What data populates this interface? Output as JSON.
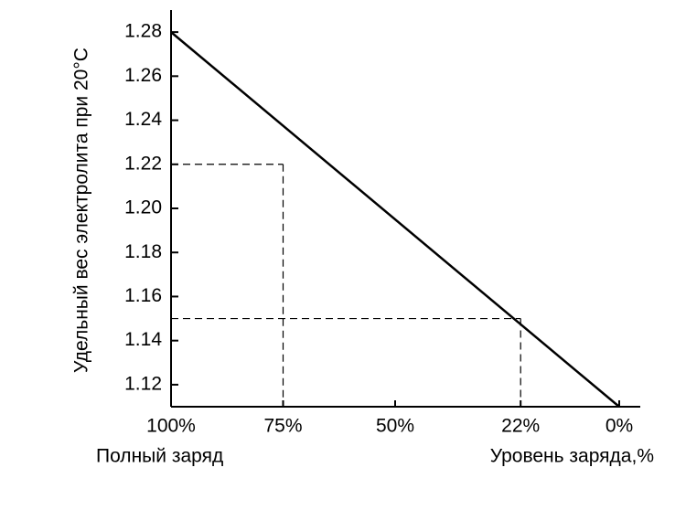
{
  "chart_data": {
    "type": "line",
    "y_label": "Удельный вес электролита при 20°C",
    "x_label": "Уровень заряда,%",
    "annotation": "Полный заряд",
    "x": [
      100,
      0
    ],
    "series": [
      {
        "color": "#000000",
        "values": [
          1.28,
          1.11
        ]
      }
    ],
    "guides": [
      {
        "x": 75,
        "y": 1.22
      },
      {
        "x": 22,
        "y": 1.15
      }
    ],
    "xlim": [
      100,
      0
    ],
    "xticks": [
      {
        "value": 100,
        "label": "100%"
      },
      {
        "value": 75,
        "label": "75%"
      },
      {
        "value": 50,
        "label": "50%"
      },
      {
        "value": 22,
        "label": "22%"
      },
      {
        "value": 0,
        "label": "0%"
      }
    ],
    "ylim": [
      1.11,
      1.29
    ],
    "yticks": [
      1.12,
      1.14,
      1.16,
      1.18,
      {
        "value": 1.2,
        "label": "1.20"
      },
      1.22,
      1.24,
      1.26,
      1.28
    ],
    "grid": false
  }
}
